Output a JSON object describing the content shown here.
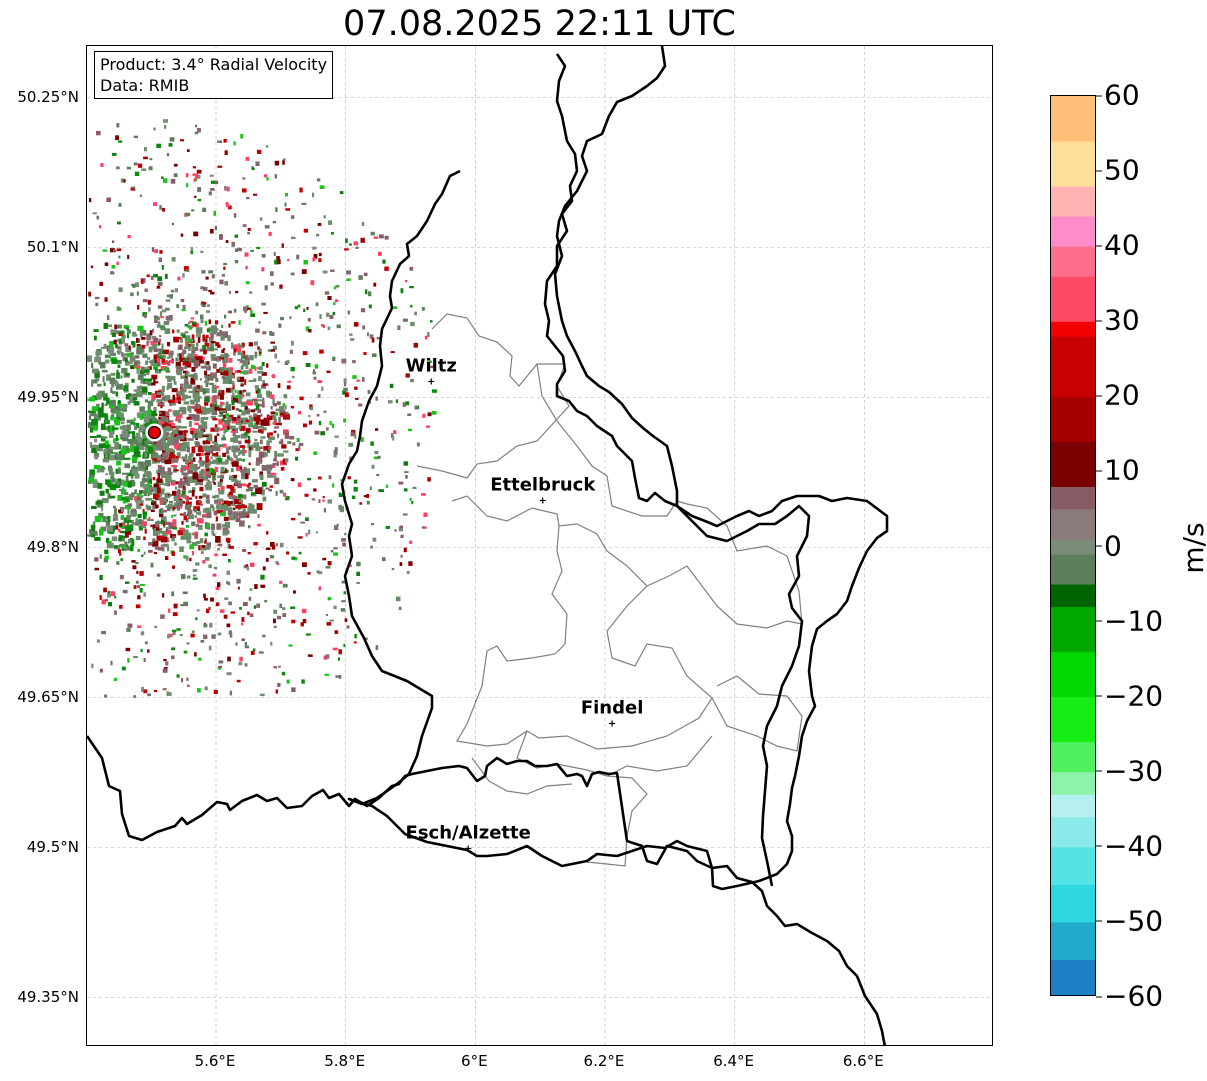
{
  "title": "07.08.2025 22:11 UTC",
  "info": {
    "product": "Product: 3.4° Radial Velocity",
    "data": "Data: RMIB"
  },
  "lat_labels": [
    "50.25°N",
    "50.1°N",
    "49.95°N",
    "49.8°N",
    "49.65°N",
    "49.5°N",
    "49.35°N"
  ],
  "lat_values": [
    50.25,
    50.1,
    49.95,
    49.8,
    49.65,
    49.5,
    49.35
  ],
  "lon_labels": [
    "5.6°E",
    "5.8°E",
    "6°E",
    "6.2°E",
    "6.4°E",
    "6.6°E"
  ],
  "lon_values": [
    5.6,
    5.8,
    6.0,
    6.2,
    6.4,
    6.6
  ],
  "cities": [
    {
      "name": "Wiltz",
      "lon": 5.932,
      "lat": 49.966
    },
    {
      "name": "Ettelbruck",
      "lon": 6.104,
      "lat": 49.847
    },
    {
      "name": "Findel",
      "lon": 6.211,
      "lat": 49.624
    },
    {
      "name": "Esch/Alzette",
      "lon": 5.989,
      "lat": 49.499
    }
  ],
  "radar_site": {
    "lon": 5.505,
    "lat": 49.915,
    "color": "#e00000"
  },
  "colorbar": {
    "unit": "m/s",
    "min": -60,
    "max": 60,
    "tick_labels": [
      "60",
      "50",
      "40",
      "30",
      "20",
      "10",
      "0",
      "−10",
      "−20",
      "−30",
      "−40",
      "−50",
      "−60"
    ],
    "tick_values": [
      60,
      50,
      40,
      30,
      20,
      10,
      0,
      -10,
      -20,
      -30,
      -40,
      -50,
      -60
    ],
    "stops": [
      {
        "v": -60,
        "c": "#1f7fc4"
      },
      {
        "v": -55,
        "c": "#22aacc"
      },
      {
        "v": -50,
        "c": "#2ed8e0"
      },
      {
        "v": -45,
        "c": "#55e3e3"
      },
      {
        "v": -40,
        "c": "#8ae9e9"
      },
      {
        "v": -36,
        "c": "#b6f0f0"
      },
      {
        "v": -33,
        "c": "#8ef2a8"
      },
      {
        "v": -30,
        "c": "#50f060"
      },
      {
        "v": -26,
        "c": "#14ee14"
      },
      {
        "v": -20,
        "c": "#00d800"
      },
      {
        "v": -14,
        "c": "#00a800"
      },
      {
        "v": -8,
        "c": "#006400"
      },
      {
        "v": -5,
        "c": "#5a7f5a"
      },
      {
        "v": -1,
        "c": "#7a8c7a"
      },
      {
        "v": 1,
        "c": "#8a7a7a"
      },
      {
        "v": 5,
        "c": "#875a64"
      },
      {
        "v": 8,
        "c": "#7a0000"
      },
      {
        "v": 14,
        "c": "#a80000"
      },
      {
        "v": 20,
        "c": "#c80000"
      },
      {
        "v": 28,
        "c": "#f00000"
      },
      {
        "v": 30,
        "c": "#ff4a66"
      },
      {
        "v": 36,
        "c": "#ff6f8c"
      },
      {
        "v": 40,
        "c": "#ff8cc8"
      },
      {
        "v": 44,
        "c": "#ffb4b4"
      },
      {
        "v": 48,
        "c": "#ffe09a"
      },
      {
        "v": 54,
        "c": "#ffc07a"
      },
      {
        "v": 60,
        "c": "#ff9a50"
      }
    ]
  },
  "colors": {
    "border": "#000000",
    "canton": "#808080",
    "grid": "#b0b0b0"
  }
}
